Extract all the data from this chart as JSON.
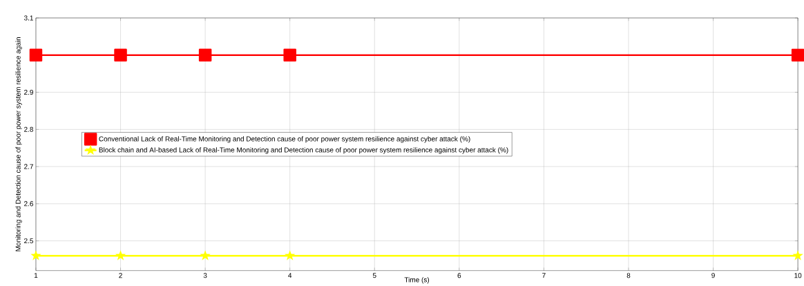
{
  "chart_data": {
    "type": "line",
    "xlabel": "Time (s)",
    "ylabel": "Monitoring and Detection   cause of poor power system resilience again",
    "x": [
      1,
      2,
      3,
      4,
      10
    ],
    "series": [
      {
        "name": "Conventional Lack of Real-Time Monitoring and Detection  cause of poor power system resilience against cyber attack (%)",
        "color": "#ff0000",
        "values": [
          3.0,
          3.0,
          3.0,
          3.0,
          3.0
        ],
        "marker": "square"
      },
      {
        "name": "Block chain and AI-based Lack of Real-Time Monitoring and Detection  cause of poor power system resilience against cyber attack (%)",
        "color": "#ffff00",
        "values": [
          2.46,
          2.46,
          2.46,
          2.46,
          2.46
        ],
        "marker": "star"
      }
    ],
    "xlim": [
      1,
      10
    ],
    "ylim": [
      2.42,
      3.1
    ],
    "xticks": [
      1,
      2,
      3,
      4,
      5,
      6,
      7,
      8,
      9,
      10
    ],
    "yticks": [
      2.5,
      2.6,
      2.7,
      2.8,
      2.9,
      {
        "value": 3.0,
        "label": null
      },
      3.1
    ],
    "grid": true,
    "legend": "left",
    "line_style": "solid"
  }
}
